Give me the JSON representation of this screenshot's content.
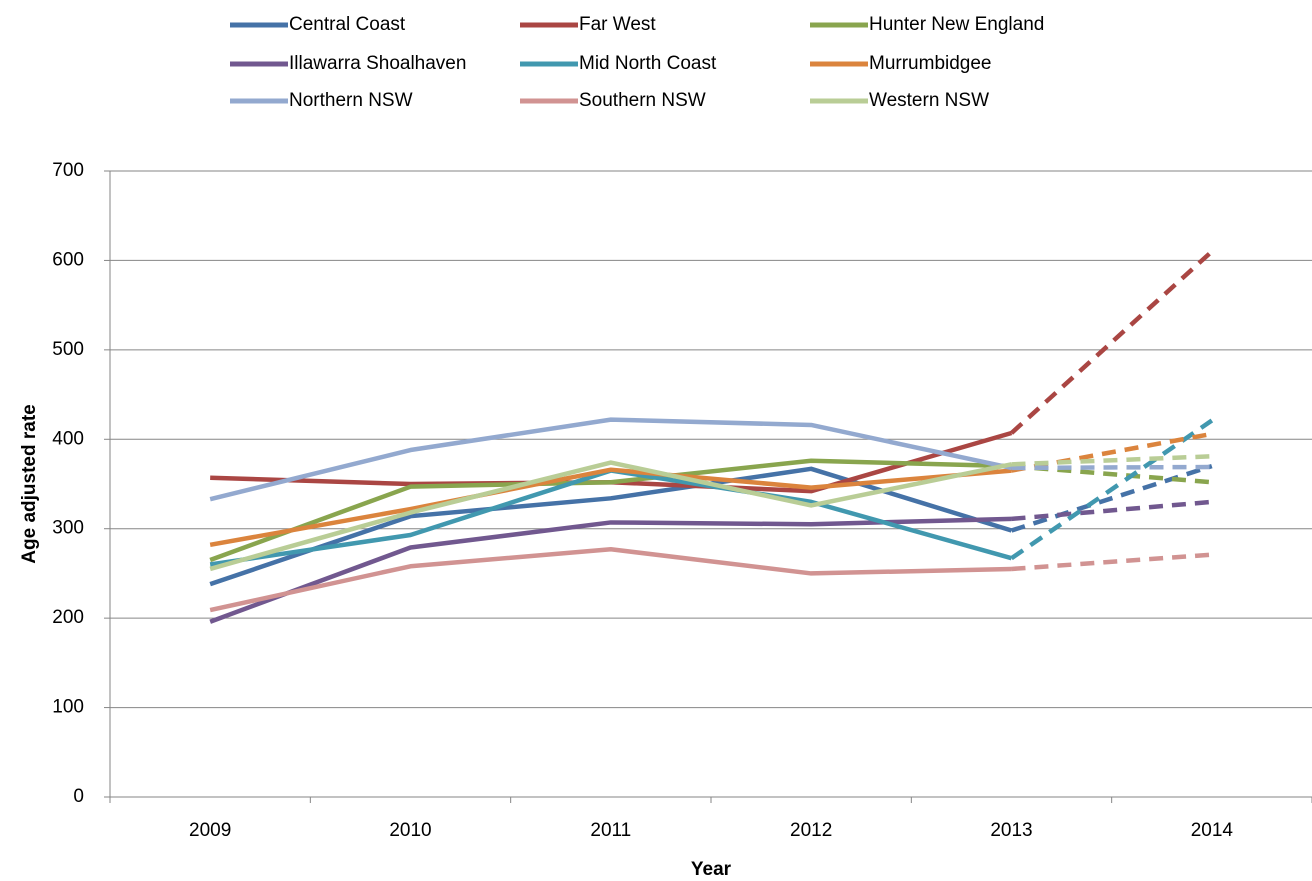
{
  "chart_data": {
    "type": "line",
    "x_label": "Year",
    "y_label": "Age adjusted rate",
    "categories": [
      "2009",
      "2010",
      "2011",
      "2012",
      "2013",
      "2014"
    ],
    "dashed_from": "2013",
    "ylim": [
      0,
      700
    ],
    "yticks": [
      0,
      100,
      200,
      300,
      400,
      500,
      600,
      700
    ],
    "grid": true,
    "legend": "top",
    "series": [
      {
        "name": "Central Coast",
        "color": "#4572a7",
        "values": [
          238,
          314,
          334,
          367,
          298,
          370
        ]
      },
      {
        "name": "Far West",
        "color": "#aa4643",
        "values": [
          357,
          350,
          352,
          342,
          407,
          610
        ]
      },
      {
        "name": "Hunter New England",
        "color": "#89a54e",
        "values": [
          265,
          347,
          352,
          376,
          370,
          352
        ]
      },
      {
        "name": "Illawarra Shoalhaven",
        "color": "#71588f",
        "values": [
          196,
          279,
          307,
          305,
          311,
          330
        ]
      },
      {
        "name": "Mid North Coast",
        "color": "#4198af",
        "values": [
          260,
          293,
          365,
          330,
          267,
          421
        ]
      },
      {
        "name": "Murrumbidgee",
        "color": "#db843d",
        "values": [
          282,
          322,
          366,
          346,
          365,
          406
        ]
      },
      {
        "name": "Northern NSW",
        "color": "#93a9cf",
        "values": [
          333,
          388,
          422,
          416,
          368,
          369
        ]
      },
      {
        "name": "Southern NSW",
        "color": "#d19392",
        "values": [
          209,
          258,
          277,
          250,
          255,
          271
        ]
      },
      {
        "name": "Western NSW",
        "color": "#b9cd96",
        "values": [
          255,
          318,
          374,
          326,
          372,
          381
        ]
      }
    ]
  }
}
